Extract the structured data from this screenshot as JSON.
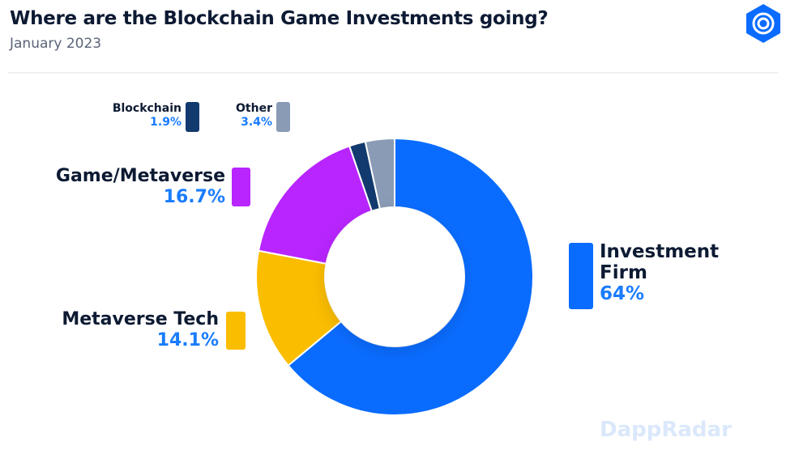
{
  "header": {
    "title": "Where are the Blockchain Game Investments going?",
    "subtitle": "January 2023",
    "logo_icon": "dappradar-logo-icon"
  },
  "watermark": "DappRadar",
  "chart_data": {
    "type": "pie",
    "donut": true,
    "title": "Where are the Blockchain Game Investments going?",
    "subtitle": "January 2023",
    "categories": [
      "Investment Firm",
      "Metaverse Tech",
      "Game/Metaverse",
      "Blockchain",
      "Other"
    ],
    "values": [
      64,
      14.1,
      16.7,
      1.9,
      3.4
    ],
    "labels": [
      "64%",
      "14.1%",
      "16.7%",
      "1.9%",
      "3.4%"
    ],
    "colors": [
      "#0a6cff",
      "#fbbd00",
      "#b825ff",
      "#123a6e",
      "#8a9bb5"
    ]
  }
}
